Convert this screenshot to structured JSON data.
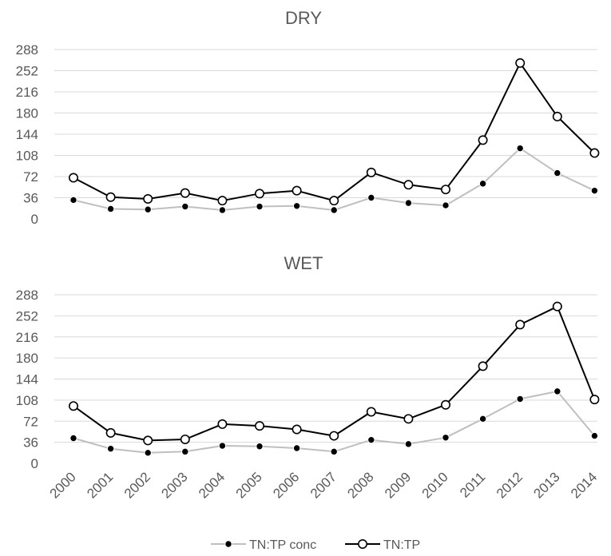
{
  "chart_data": [
    {
      "type": "line",
      "title": "DRY",
      "xlabel": "",
      "ylabel": "",
      "categories": [
        "2000",
        "2001",
        "2002",
        "2003",
        "2004",
        "2005",
        "2006",
        "2007",
        "2008",
        "2009",
        "2010",
        "2011",
        "2012",
        "2013",
        "2014"
      ],
      "yticks": [
        0,
        36,
        72,
        108,
        144,
        180,
        216,
        252,
        288
      ],
      "ylim": [
        0,
        288
      ],
      "grid": true,
      "series": [
        {
          "name": "TN:TP conc",
          "color": "#bfbfbf",
          "marker": "filled-circle",
          "marker_color": "#000000",
          "values": [
            32,
            17,
            16,
            21,
            15,
            21,
            22,
            15,
            36,
            27,
            23,
            60,
            120,
            78,
            48
          ]
        },
        {
          "name": "TN:TP",
          "color": "#000000",
          "marker": "hollow-circle",
          "marker_color": "#ffffff",
          "values": [
            70,
            37,
            34,
            44,
            31,
            43,
            48,
            31,
            79,
            58,
            50,
            134,
            265,
            174,
            112
          ]
        }
      ]
    },
    {
      "type": "line",
      "title": "WET",
      "xlabel": "",
      "ylabel": "",
      "categories": [
        "2000",
        "2001",
        "2002",
        "2003",
        "2004",
        "2005",
        "2006",
        "2007",
        "2008",
        "2009",
        "2010",
        "2011",
        "2012",
        "2013",
        "2014"
      ],
      "yticks": [
        0,
        36,
        72,
        108,
        144,
        180,
        216,
        252,
        288
      ],
      "ylim": [
        0,
        288
      ],
      "grid": true,
      "series": [
        {
          "name": "TN:TP conc",
          "color": "#bfbfbf",
          "marker": "filled-circle",
          "marker_color": "#000000",
          "values": [
            43,
            25,
            18,
            20,
            30,
            29,
            26,
            20,
            40,
            33,
            44,
            76,
            110,
            123,
            47
          ]
        },
        {
          "name": "TN:TP",
          "color": "#000000",
          "marker": "hollow-circle",
          "marker_color": "#ffffff",
          "values": [
            98,
            52,
            39,
            41,
            67,
            64,
            58,
            47,
            88,
            76,
            100,
            166,
            237,
            268,
            109
          ]
        }
      ]
    }
  ],
  "legend": {
    "placement": "bottom",
    "items": [
      {
        "label": "TN:TP conc",
        "line_color": "#bfbfbf",
        "marker_fill": "#000000"
      },
      {
        "label": "TN:TP",
        "line_color": "#000000",
        "marker_fill": "#ffffff"
      }
    ]
  },
  "colors": {
    "text": "#595959",
    "grid": "#d9d9d9",
    "background": "#ffffff"
  }
}
